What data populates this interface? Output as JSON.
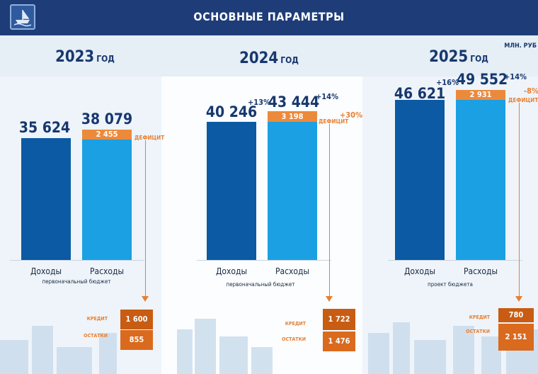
{
  "header": {
    "title": "ОСНОВНЫЕ ПАРАМЕТРЫ",
    "logo_icon": "city-emblem-icon"
  },
  "unit_label": "МЛН. РУБ",
  "labels": {
    "deficit": "ДЕФИЦИТ",
    "credit": "КРЕДИТ",
    "remainder": "ОСТАТКИ"
  },
  "chart_data": [
    {
      "type": "bar",
      "title_year": "2023",
      "title_suffix": "ГОД",
      "categories": [
        "Доходы",
        "Расходы"
      ],
      "values": [
        35624,
        38079
      ],
      "value_labels": [
        "35 624",
        "38 079"
      ],
      "deficit": 2455,
      "deficit_label": "2 455",
      "growth_labels": [
        "",
        ""
      ],
      "deficit_growth_label": "",
      "note": "первоначальный бюджет",
      "credit": "1 600",
      "remainder": "855",
      "ylim": [
        0,
        50000
      ]
    },
    {
      "type": "bar",
      "title_year": "2024",
      "title_suffix": "ГОД",
      "categories": [
        "Доходы",
        "Расходы"
      ],
      "values": [
        40246,
        43444
      ],
      "value_labels": [
        "40 246",
        "43 444"
      ],
      "deficit": 3198,
      "deficit_label": "3 198",
      "growth_labels": [
        "+13%",
        "+14%"
      ],
      "deficit_growth_label": "+30%",
      "note": "первоначальный бюджет",
      "credit": "1 722",
      "remainder": "1 476",
      "ylim": [
        0,
        50000
      ]
    },
    {
      "type": "bar",
      "title_year": "2025",
      "title_suffix": "ГОД",
      "categories": [
        "Доходы",
        "Расходы"
      ],
      "values": [
        46621,
        49552
      ],
      "value_labels": [
        "46 621",
        "49 552"
      ],
      "deficit": 2931,
      "deficit_label": "2 931",
      "growth_labels": [
        "+16%",
        "+14%"
      ],
      "deficit_growth_label": "-8%",
      "note": "проект бюджета",
      "credit": "780",
      "remainder": "2 151",
      "ylim": [
        0,
        50000
      ]
    }
  ]
}
